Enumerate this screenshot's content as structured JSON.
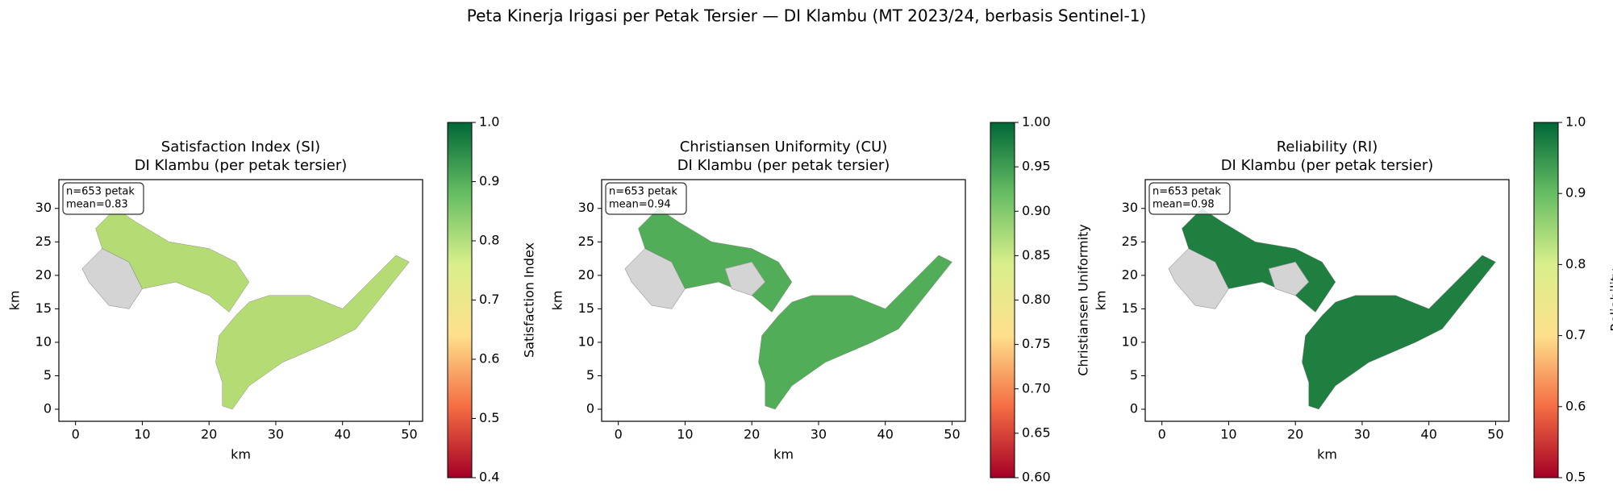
{
  "title": "Peta Kinerja Irigasi per Petak Tersier — DI Klambu (MT 2023/24, berbasis Sentinel-1)",
  "chart_data": [
    {
      "type": "map",
      "title": "Satisfaction Index (SI)",
      "subtitle": "DI Klambu (per petak tersier)",
      "xlabel": "km",
      "ylabel": "km",
      "xlim": [
        -2.5,
        52
      ],
      "ylim": [
        -1.8,
        34.3
      ],
      "xticks": [
        0,
        10,
        20,
        30,
        40,
        50
      ],
      "yticks": [
        0,
        5,
        10,
        15,
        20,
        25,
        30
      ],
      "annotation": [
        "n=653 petak",
        "mean=0.83"
      ],
      "colorbar_label": "Satisfaction Index",
      "clim": [
        0.4,
        1.0
      ],
      "cticks": [
        0.4,
        0.5,
        0.6,
        0.7,
        0.8,
        0.9,
        {
          "value": 1.0,
          "label": "1.0"
        }
      ],
      "colormap": [
        "#a50026",
        "#f46d43",
        "#fee08b",
        "#d9ef8b",
        "#66bd63",
        "#006837"
      ]
    },
    {
      "type": "map",
      "title": "Christiansen Uniformity (CU)",
      "subtitle": "DI Klambu (per petak tersier)",
      "xlabel": "km",
      "ylabel": "km",
      "xlim": [
        -2.5,
        52
      ],
      "ylim": [
        -1.8,
        34.3
      ],
      "xticks": [
        0,
        10,
        20,
        30,
        40,
        50
      ],
      "yticks": [
        0,
        5,
        10,
        15,
        20,
        25,
        30
      ],
      "annotation": [
        "n=653 petak",
        "mean=0.94"
      ],
      "colorbar_label": "Christiansen Uniformity",
      "clim": [
        0.6,
        1.0
      ],
      "cticks": [
        {
          "value": 0.6,
          "label": "0.60"
        },
        0.65,
        {
          "value": 0.7,
          "label": "0.70"
        },
        0.75,
        {
          "value": 0.8,
          "label": "0.80"
        },
        0.85,
        {
          "value": 0.9,
          "label": "0.90"
        },
        0.95,
        {
          "value": 1.0,
          "label": "1.00"
        }
      ],
      "colormap": [
        "#a50026",
        "#f46d43",
        "#fee08b",
        "#d9ef8b",
        "#66bd63",
        "#006837"
      ]
    },
    {
      "type": "map",
      "title": "Reliability (RI)",
      "subtitle": "DI Klambu (per petak tersier)",
      "xlabel": "km",
      "ylabel": "km",
      "xlim": [
        -2.5,
        52
      ],
      "ylim": [
        -1.8,
        34.3
      ],
      "xticks": [
        0,
        10,
        20,
        30,
        40,
        50
      ],
      "yticks": [
        0,
        5,
        10,
        15,
        20,
        25,
        30
      ],
      "annotation": [
        "n=653 petak",
        "mean=0.98"
      ],
      "colorbar_label": "Reliability",
      "clim": [
        0.5,
        1.0
      ],
      "cticks": [
        0.5,
        0.6,
        0.7,
        0.8,
        0.9,
        {
          "value": 1.0,
          "label": "1.0"
        }
      ],
      "colormap": [
        "#a50026",
        "#f46d43",
        "#fee08b",
        "#d9ef8b",
        "#66bd63",
        "#006837"
      ]
    }
  ]
}
